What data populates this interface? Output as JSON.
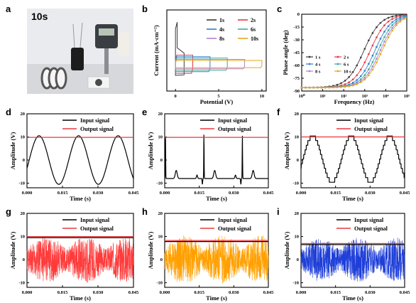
{
  "chart_data": [
    {
      "id": "a",
      "type": "photo",
      "panel_label": "a",
      "photo_label": "10s"
    },
    {
      "id": "b",
      "type": "line",
      "panel_label": "b",
      "xlabel": "Potential (V)",
      "ylabel": "Current (mA·cm⁻²)",
      "xlim": [
        -1,
        10.5
      ],
      "ylim": [
        -100,
        200
      ],
      "xticks": [
        0,
        5,
        10
      ],
      "yticks": [],
      "legend_placement": "top-right",
      "series": [
        {
          "name": "1s",
          "color": "#3a3a3a",
          "vmax": 1.0,
          "ihalf": 40
        },
        {
          "name": "2s",
          "color": "#e8383d",
          "vmax": 2.0,
          "ihalf": 33
        },
        {
          "name": "4s",
          "color": "#2a7fd4",
          "vmax": 4.0,
          "ihalf": 27
        },
        {
          "name": "6s",
          "color": "#3fa89a",
          "vmax": 6.0,
          "ihalf": 22
        },
        {
          "name": "8s",
          "color": "#b57fd0",
          "vmax": 8.0,
          "ihalf": 17
        },
        {
          "name": "10s",
          "color": "#e0a81e",
          "vmax": 10.0,
          "ihalf": 13
        }
      ]
    },
    {
      "id": "c",
      "type": "line",
      "panel_label": "c",
      "xlabel": "Frequency (Hz)",
      "ylabel": "Phase angle (deg)",
      "xscale": "log",
      "xlim": [
        1,
        100000
      ],
      "ylim": [
        -90,
        0
      ],
      "xtick_labels": [
        "10⁰",
        "10¹",
        "10²",
        "10³",
        "10⁴",
        "10⁵"
      ],
      "ytick_labels": [
        "-90",
        "-75",
        "-60",
        "-45",
        "-30",
        "-15",
        "0"
      ],
      "legend_placement": "bottom-left",
      "series": [
        {
          "name": "1 s",
          "color": "#3a3a3a",
          "fc": 900
        },
        {
          "name": "2 s",
          "color": "#e8383d",
          "fc": 1800
        },
        {
          "name": "4 s",
          "color": "#2a7fd4",
          "fc": 3000
        },
        {
          "name": "6 s",
          "color": "#3fa89a",
          "fc": 4200
        },
        {
          "name": "8 s",
          "color": "#b57fd0",
          "fc": 5400
        },
        {
          "name": "10 s",
          "color": "#e0a81e",
          "fc": 6600
        }
      ]
    },
    {
      "id": "d",
      "type": "line",
      "panel_label": "d",
      "xlabel": "Time (s)",
      "ylabel": "Amplitude (V)",
      "xlim": [
        0,
        0.045
      ],
      "ylim": [
        -12,
        20
      ],
      "xtick_labels": [
        "0.000",
        "0.015",
        "0.030",
        "0.045"
      ],
      "ytick_labels": [
        "-10",
        "0",
        "10",
        "20"
      ],
      "signal": "sine",
      "output_level": 9.8,
      "series": [
        {
          "name": "Input signal",
          "color": "#000000"
        },
        {
          "name": "Output signal",
          "color": "#e8383d"
        }
      ]
    },
    {
      "id": "e",
      "type": "line",
      "panel_label": "e",
      "xlabel": "Time (s)",
      "ylabel": "Amplitude (V)",
      "xlim": [
        0,
        0.045
      ],
      "ylim": [
        -12,
        20
      ],
      "xtick_labels": [
        "0.000",
        "0.015",
        "0.030",
        "0.045"
      ],
      "ytick_labels": [
        "-10",
        "0",
        "10",
        "20"
      ],
      "signal": "ecg",
      "output_level": 9.8,
      "series": [
        {
          "name": "Input signal",
          "color": "#000000"
        },
        {
          "name": "Output signal",
          "color": "#e8383d"
        }
      ]
    },
    {
      "id": "f",
      "type": "line",
      "panel_label": "f",
      "xlabel": "Time (s)",
      "ylabel": "Amplitude (V)",
      "xlim": [
        0,
        0.045
      ],
      "ylim": [
        -12,
        20
      ],
      "xtick_labels": [
        "0.000",
        "0.015",
        "0.030",
        "0.045"
      ],
      "ytick_labels": [
        "-10",
        "0",
        "10",
        "20"
      ],
      "signal": "staircase",
      "output_level": 10,
      "series": [
        {
          "name": "Input signal",
          "color": "#000000"
        },
        {
          "name": "Output signal",
          "color": "#e8383d"
        }
      ]
    },
    {
      "id": "g",
      "type": "line",
      "panel_label": "g",
      "xlabel": "Time (s)",
      "ylabel": "Amplitude (V)",
      "xlim": [
        0,
        0.045
      ],
      "ylim": [
        -12,
        20
      ],
      "xtick_labels": [
        "0.000",
        "0.015",
        "0.030",
        "0.045"
      ],
      "ytick_labels": [
        "-10",
        "0",
        "10",
        "20"
      ],
      "signal": "noise",
      "noise_color": "#ff3b3b",
      "noise_amp": 10,
      "output_level": 9.5,
      "series": [
        {
          "name": "Input signal",
          "color": "#000000"
        },
        {
          "name": "Output signal",
          "color": "#e8383d"
        }
      ]
    },
    {
      "id": "h",
      "type": "line",
      "panel_label": "h",
      "xlabel": "Time (s)",
      "ylabel": "Amplitude (V)",
      "xlim": [
        0,
        0.045
      ],
      "ylim": [
        -12,
        20
      ],
      "xtick_labels": [
        "0.000",
        "0.015",
        "0.030",
        "0.045"
      ],
      "ytick_labels": [
        "-10",
        "0",
        "10",
        "20"
      ],
      "signal": "noise",
      "noise_color": "#ffa000",
      "noise_amp": 10.5,
      "output_level": 7.8,
      "series": [
        {
          "name": "Input signal",
          "color": "#000000"
        },
        {
          "name": "Output signal",
          "color": "#e8383d"
        }
      ]
    },
    {
      "id": "i",
      "type": "line",
      "panel_label": "i",
      "xlabel": "Time (s)",
      "ylabel": "Amplitude (V)",
      "xlim": [
        0,
        0.045
      ],
      "ylim": [
        -12,
        20
      ],
      "xtick_labels": [
        "0.000",
        "0.015",
        "0.030",
        "0.045"
      ],
      "ytick_labels": [
        "-10",
        "0",
        "10",
        "20"
      ],
      "signal": "noise",
      "noise_color": "#1f3fd8",
      "noise_amp": 9.5,
      "output_level": 6.5,
      "series": [
        {
          "name": "Input signal",
          "color": "#000000"
        },
        {
          "name": "Output signal",
          "color": "#e8383d"
        }
      ]
    }
  ]
}
